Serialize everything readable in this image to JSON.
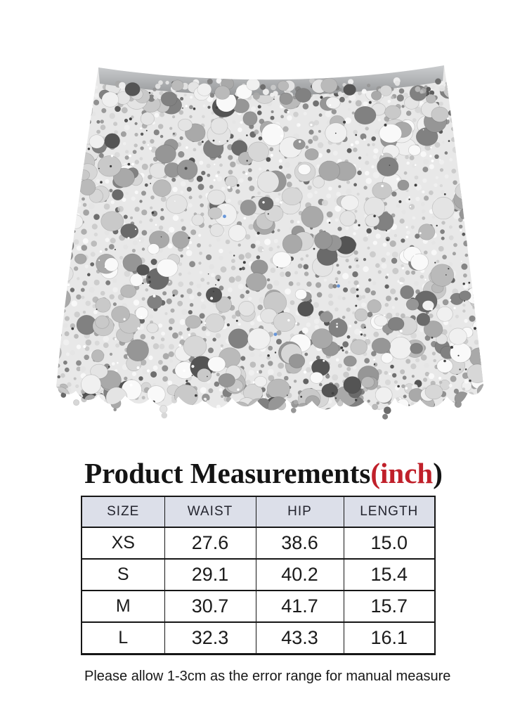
{
  "page": {
    "background": "#ffffff"
  },
  "product_photo": {
    "description": "Silver sequin mini skirt with large round paillettes, small sequin strands and a plain gray waistband, shown flat on white",
    "waistband_color_top": "#c9cbcd",
    "waistband_color_bottom": "#9a9c9e",
    "base_color": "#e8e8e8",
    "sequin_palette": [
      "#f9f9f9",
      "#f0f0f0",
      "#e4e4e4",
      "#d7d7d7",
      "#c9c9c9",
      "#bababa",
      "#a9a9a9",
      "#969696",
      "#818181",
      "#6a6a6a",
      "#545454"
    ],
    "speck_dark": "#414141",
    "speck_light": "#ffffff",
    "glint_color": "#4f86d6"
  },
  "title": {
    "prefix": "Product Measurements",
    "highlight": "(inch",
    "suffix": ")",
    "highlight_color": "#c0202a",
    "text_color": "#141414"
  },
  "size_chart": {
    "columns": [
      "SIZE",
      "WAIST",
      "HIP",
      "LENGTH"
    ],
    "rows": [
      [
        "XS",
        "27.6",
        "38.6",
        "15.0"
      ],
      [
        "S",
        "29.1",
        "40.2",
        "15.4"
      ],
      [
        "M",
        "30.7",
        "41.7",
        "15.7"
      ],
      [
        "L",
        "32.3",
        "43.3",
        "16.1"
      ]
    ],
    "header_bg": "#dcdfe9",
    "border_color": "#161616"
  },
  "note": {
    "text": "Please allow 1-3cm as the error range for manual measure"
  }
}
